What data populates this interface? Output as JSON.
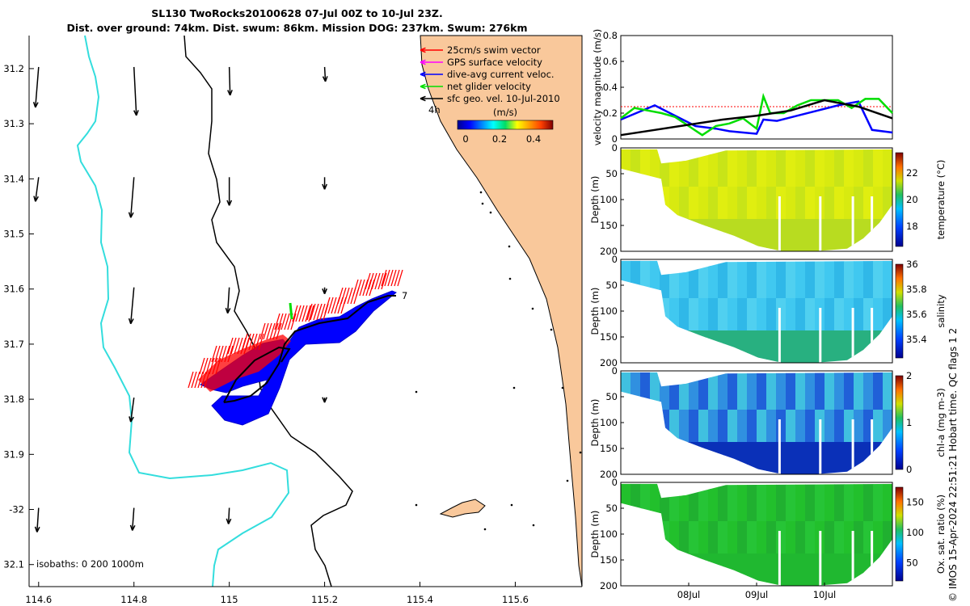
{
  "titles": {
    "line1": "SL130 TwoRocks20100628 07-Jul 00Z to 10-Jul 23Z.",
    "line2": "Dist. over ground: 74km. Dist. swum: 86km. Mission DOG: 237km. Swum: 276km"
  },
  "colors": {
    "land": "#f9c89b",
    "track": "#0000ff",
    "swim": "#ff0000",
    "isobath_shallow": "#33dddd",
    "net": "#00ee00"
  },
  "chart_data": [
    {
      "type": "map",
      "xticks": [
        114.6,
        114.8,
        115,
        115.2,
        115.4,
        115.6
      ],
      "xtick_labels": [
        "114.6",
        "114.8",
        "115",
        "115.2",
        "115.4",
        "115.6"
      ],
      "xlim": [
        114.58,
        115.74
      ],
      "yticks": [
        -31.2,
        -31.3,
        -31.4,
        -31.5,
        -31.6,
        -31.7,
        -31.8,
        -31.9,
        -32,
        -32.1
      ],
      "ytick_labels": [
        "31.2",
        "31.3",
        "31.4",
        "31.5",
        "31.6",
        "31.7",
        "31.8",
        "31.9",
        "-32",
        "32.1"
      ],
      "ylim": [
        -32.14,
        -31.14
      ],
      "isobath_label": "isobaths: 0   200  1000m",
      "legend": [
        {
          "label": "25cm/s swim vector",
          "color": "#ff0000"
        },
        {
          "label": "GPS surface velocity",
          "color": "#ff00ff"
        },
        {
          "label": "dive-avg current veloc.",
          "color": "#0000ff"
        },
        {
          "label": "net glider velocity",
          "color": "#00dd00"
        },
        {
          "label": "sfc geo. vel. 10-Jul-2010",
          "color": "#000000"
        }
      ],
      "colorbar": {
        "title": "(m/s)",
        "ticks": [
          "0",
          "0.2",
          "0.4"
        ]
      },
      "annotations": [
        "4h",
        "7"
      ]
    },
    {
      "type": "line",
      "ylabel": "velocity magnitude (m/s)",
      "ylim": [
        0,
        0.8
      ],
      "yticks": [
        "0",
        "0.2",
        "0.4",
        "0.6",
        "0.8"
      ],
      "x_days": [
        7,
        11
      ],
      "series": [
        {
          "name": "swim",
          "color": "#ff0000",
          "x": [
            7,
            11
          ],
          "values": [
            0.25,
            0.25
          ]
        },
        {
          "name": "dive-avg current",
          "color": "#0000ff",
          "x": [
            7,
            7.5,
            7.8,
            8.1,
            8.4,
            8.6,
            8.8,
            9.0,
            9.1,
            9.3,
            9.6,
            9.9,
            10.2,
            10.5,
            10.7,
            11
          ],
          "values": [
            0.15,
            0.26,
            0.18,
            0.1,
            0.08,
            0.06,
            0.05,
            0.04,
            0.15,
            0.14,
            0.18,
            0.22,
            0.26,
            0.29,
            0.07,
            0.05
          ]
        },
        {
          "name": "net glider",
          "color": "#00dd00",
          "x": [
            7,
            7.2,
            7.4,
            7.6,
            7.8,
            8.0,
            8.2,
            8.4,
            8.6,
            8.8,
            9.0,
            9.1,
            9.2,
            9.4,
            9.6,
            9.8,
            10.0,
            10.2,
            10.4,
            10.6,
            10.8,
            11
          ],
          "values": [
            0.16,
            0.24,
            0.22,
            0.2,
            0.17,
            0.1,
            0.03,
            0.1,
            0.12,
            0.16,
            0.08,
            0.33,
            0.2,
            0.2,
            0.26,
            0.3,
            0.3,
            0.3,
            0.24,
            0.31,
            0.31,
            0.2
          ]
        },
        {
          "name": "sfc geo",
          "color": "#000000",
          "x": [
            7,
            7.5,
            8,
            8.5,
            9,
            9.5,
            10,
            10.5,
            11
          ],
          "values": [
            0.03,
            0.07,
            0.11,
            0.15,
            0.18,
            0.22,
            0.3,
            0.25,
            0.16
          ]
        }
      ]
    },
    {
      "type": "heatmap",
      "variable": "temperature",
      "ylabel": "Depth (m)",
      "clabel": "temperature (°C)",
      "cticks": [
        "18",
        "20",
        "22"
      ],
      "clim": [
        16.5,
        23.5
      ],
      "yticks": [
        "0",
        "50",
        "100",
        "150",
        "200"
      ]
    },
    {
      "type": "heatmap",
      "variable": "salinity",
      "ylabel": "Depth (m)",
      "clabel": "salinity",
      "cticks": [
        "35.4",
        "35.6",
        "35.8",
        "36"
      ],
      "clim": [
        35.25,
        36
      ],
      "yticks": [
        "0",
        "50",
        "100",
        "150",
        "200"
      ]
    },
    {
      "type": "heatmap",
      "variable": "chlorophyll",
      "ylabel": "Depth (m)",
      "clabel": "chl-a (mg m-3)",
      "cticks": [
        "0",
        "1",
        "2"
      ],
      "clim": [
        0,
        2
      ],
      "yticks": [
        "0",
        "50",
        "100",
        "150",
        "200"
      ]
    },
    {
      "type": "heatmap",
      "variable": "oxygen",
      "ylabel": "Depth (m)",
      "clabel": "Ox. sat. ratio (%)",
      "cticks": [
        "50",
        "100",
        "150"
      ],
      "clim": [
        20,
        175
      ],
      "yticks": [
        "0",
        "50",
        "100",
        "150",
        "200"
      ],
      "xtick_labels": [
        "08Jul",
        "09Jul",
        "10Jul"
      ],
      "xtick_days": [
        8,
        9,
        10
      ]
    }
  ],
  "side_note": "© IMOS 15-Apr-2024 22:51:21 Hobart time. QC flags 1  2"
}
